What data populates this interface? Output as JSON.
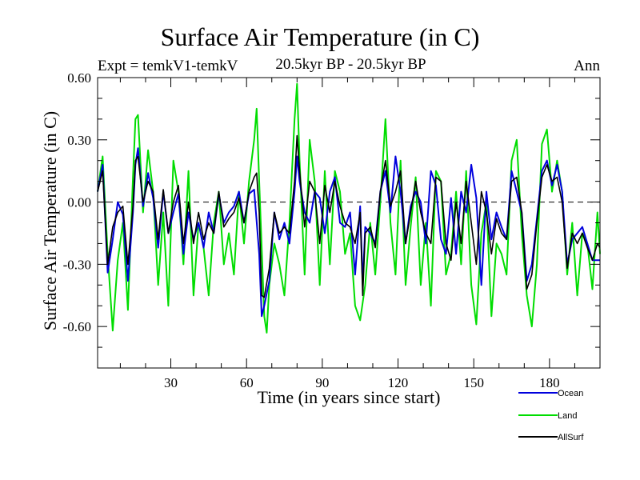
{
  "chart_data": {
    "type": "line",
    "title": "Surface Air Temperature (in C)",
    "subtitle_left": "Expt = temkV1-temkV",
    "subtitle_center": "20.5kyr BP - 20.5kyr BP",
    "subtitle_right": "Ann",
    "xlabel": "Time (in years since start)",
    "ylabel": "Surface Air Temperature (in C)",
    "xlim": [
      1,
      200
    ],
    "ylim": [
      -0.8,
      0.6
    ],
    "xticks": [
      30,
      60,
      90,
      120,
      150,
      180
    ],
    "xtick_labels": [
      "30",
      "60",
      "90",
      "120",
      "150",
      "180"
    ],
    "yticks": [
      0.6,
      0.3,
      0.0,
      -0.3,
      -0.6
    ],
    "ytick_labels": [
      "0.60",
      "0.30",
      "0.00",
      "-0.30",
      "-0.60"
    ],
    "zero_reference_line": "dashed",
    "series": [
      {
        "name": "Ocean",
        "color": "#0000dd",
        "x": [
          1,
          3,
          5,
          7,
          9,
          11,
          13,
          15,
          16,
          17,
          19,
          21,
          23,
          25,
          27,
          29,
          31,
          33,
          35,
          37,
          39,
          41,
          43,
          45,
          47,
          49,
          51,
          53,
          55,
          57,
          59,
          61,
          63,
          65,
          66,
          67,
          69,
          71,
          73,
          75,
          77,
          79,
          80,
          81,
          83,
          85,
          87,
          89,
          91,
          93,
          95,
          97,
          99,
          101,
          103,
          105,
          106,
          107,
          109,
          111,
          113,
          115,
          117,
          119,
          121,
          123,
          125,
          127,
          129,
          131,
          133,
          135,
          137,
          139,
          141,
          143,
          145,
          147,
          149,
          151,
          153,
          155,
          157,
          159,
          161,
          163,
          165,
          167,
          169,
          171,
          173,
          175,
          177,
          179,
          181,
          183,
          185,
          187,
          189,
          191,
          193,
          195,
          197,
          199,
          200
        ],
        "values": [
          0.05,
          0.18,
          -0.34,
          -0.18,
          0.0,
          -0.06,
          -0.38,
          -0.05,
          0.18,
          0.26,
          -0.02,
          0.14,
          0.02,
          -0.22,
          0.05,
          -0.15,
          -0.05,
          0.04,
          -0.25,
          -0.05,
          -0.18,
          -0.1,
          -0.22,
          -0.05,
          -0.15,
          0.04,
          -0.1,
          -0.05,
          -0.02,
          0.05,
          -0.1,
          0.04,
          0.06,
          -0.25,
          -0.55,
          -0.5,
          -0.38,
          -0.05,
          -0.18,
          -0.1,
          -0.2,
          0.05,
          0.22,
          0.1,
          -0.05,
          -0.1,
          0.05,
          0.02,
          -0.15,
          0.05,
          0.12,
          -0.1,
          -0.12,
          -0.05,
          -0.35,
          -0.02,
          -0.4,
          -0.12,
          -0.15,
          -0.2,
          0.05,
          0.15,
          -0.05,
          0.22,
          0.05,
          -0.2,
          -0.02,
          0.05,
          0.0,
          -0.2,
          0.15,
          0.08,
          -0.18,
          -0.25,
          0.02,
          -0.25,
          0.05,
          -0.05,
          0.18,
          0.02,
          -0.4,
          0.05,
          -0.18,
          -0.05,
          -0.12,
          -0.18,
          0.15,
          0.05,
          -0.05,
          -0.38,
          -0.3,
          -0.08,
          0.15,
          0.2,
          0.08,
          0.18,
          0.05,
          -0.3,
          -0.18,
          -0.15,
          -0.12,
          -0.2,
          -0.28,
          -0.28,
          -0.28
        ]
      },
      {
        "name": "Land",
        "color": "#00dd00",
        "x": [
          1,
          3,
          5,
          7,
          9,
          11,
          13,
          15,
          16,
          17,
          19,
          21,
          23,
          25,
          27,
          29,
          31,
          33,
          35,
          37,
          39,
          41,
          43,
          45,
          47,
          49,
          51,
          53,
          55,
          57,
          59,
          61,
          63,
          64,
          65,
          67,
          68,
          69,
          71,
          73,
          75,
          77,
          79,
          80,
          81,
          83,
          85,
          87,
          89,
          91,
          93,
          95,
          97,
          99,
          101,
          103,
          105,
          107,
          109,
          111,
          113,
          115,
          117,
          119,
          121,
          123,
          125,
          127,
          129,
          131,
          133,
          135,
          137,
          139,
          141,
          143,
          145,
          147,
          149,
          151,
          153,
          155,
          157,
          159,
          161,
          163,
          165,
          167,
          169,
          171,
          173,
          175,
          177,
          179,
          181,
          183,
          185,
          187,
          189,
          191,
          193,
          195,
          197,
          199,
          200
        ],
        "values": [
          0.05,
          0.22,
          -0.25,
          -0.62,
          -0.28,
          -0.1,
          -0.52,
          0.12,
          0.4,
          0.42,
          -0.05,
          0.25,
          0.05,
          -0.4,
          -0.05,
          -0.5,
          0.2,
          0.05,
          -0.3,
          0.15,
          -0.45,
          -0.1,
          -0.22,
          -0.45,
          -0.1,
          0.05,
          -0.3,
          -0.15,
          -0.35,
          0.05,
          -0.2,
          0.1,
          0.3,
          0.45,
          0.1,
          -0.55,
          -0.63,
          -0.4,
          -0.2,
          -0.3,
          -0.45,
          -0.1,
          0.4,
          0.57,
          0.2,
          -0.35,
          0.3,
          0.1,
          -0.4,
          0.15,
          -0.3,
          0.15,
          0.05,
          -0.25,
          -0.15,
          -0.5,
          -0.57,
          -0.4,
          -0.1,
          -0.35,
          0.0,
          0.4,
          -0.1,
          -0.35,
          0.2,
          -0.4,
          -0.12,
          0.12,
          -0.4,
          -0.1,
          -0.5,
          0.15,
          0.1,
          -0.35,
          -0.25,
          0.05,
          -0.3,
          0.15,
          -0.4,
          -0.59,
          -0.15,
          0.0,
          -0.55,
          -0.2,
          -0.25,
          -0.35,
          0.2,
          0.3,
          -0.15,
          -0.45,
          -0.6,
          -0.3,
          0.28,
          0.35,
          0.05,
          0.2,
          0.05,
          -0.35,
          -0.1,
          -0.45,
          -0.15,
          -0.2,
          -0.42,
          -0.05,
          -0.25
        ]
      },
      {
        "name": "AllSurf",
        "color": "#000000",
        "x": [
          1,
          3,
          5,
          7,
          9,
          11,
          13,
          15,
          16,
          17,
          19,
          21,
          23,
          25,
          27,
          29,
          31,
          33,
          35,
          37,
          39,
          41,
          43,
          45,
          47,
          49,
          51,
          53,
          55,
          57,
          59,
          61,
          63,
          64,
          65,
          66,
          67,
          69,
          71,
          73,
          75,
          77,
          79,
          80,
          81,
          83,
          85,
          87,
          89,
          91,
          93,
          95,
          97,
          99,
          101,
          103,
          105,
          106,
          107,
          109,
          111,
          113,
          115,
          117,
          119,
          121,
          123,
          125,
          127,
          129,
          131,
          133,
          135,
          137,
          139,
          141,
          143,
          145,
          147,
          149,
          151,
          153,
          155,
          157,
          159,
          161,
          163,
          165,
          167,
          169,
          171,
          173,
          175,
          177,
          179,
          181,
          183,
          185,
          187,
          189,
          191,
          193,
          195,
          197,
          199,
          200
        ],
        "values": [
          0.05,
          0.15,
          -0.3,
          -0.12,
          -0.05,
          -0.02,
          -0.3,
          -0.02,
          0.2,
          0.22,
          0.0,
          0.1,
          0.05,
          -0.18,
          0.06,
          -0.15,
          0.0,
          0.08,
          -0.2,
          0.0,
          -0.2,
          -0.05,
          -0.18,
          -0.1,
          -0.15,
          0.05,
          -0.12,
          -0.08,
          -0.05,
          0.02,
          -0.1,
          0.05,
          0.12,
          0.14,
          -0.05,
          -0.45,
          -0.46,
          -0.32,
          -0.05,
          -0.15,
          -0.12,
          -0.15,
          0.1,
          0.32,
          0.15,
          -0.12,
          0.1,
          0.05,
          -0.2,
          0.08,
          -0.05,
          0.1,
          -0.02,
          -0.1,
          -0.12,
          -0.2,
          -0.05,
          -0.45,
          -0.15,
          -0.12,
          -0.22,
          0.05,
          0.2,
          -0.02,
          0.05,
          0.15,
          -0.2,
          -0.05,
          0.1,
          -0.05,
          -0.15,
          -0.2,
          0.12,
          0.1,
          -0.2,
          -0.28,
          0.0,
          -0.2,
          0.1,
          -0.1,
          -0.3,
          0.05,
          -0.05,
          -0.25,
          -0.08,
          -0.15,
          -0.18,
          0.1,
          0.12,
          -0.05,
          -0.42,
          -0.35,
          -0.1,
          0.12,
          0.18,
          0.1,
          0.12,
          0.0,
          -0.32,
          -0.15,
          -0.2,
          -0.15,
          -0.22,
          -0.28,
          -0.2,
          -0.22
        ]
      }
    ],
    "legend": [
      "Ocean",
      "Land",
      "AllSurf"
    ],
    "legend_position": "bottom-right"
  }
}
